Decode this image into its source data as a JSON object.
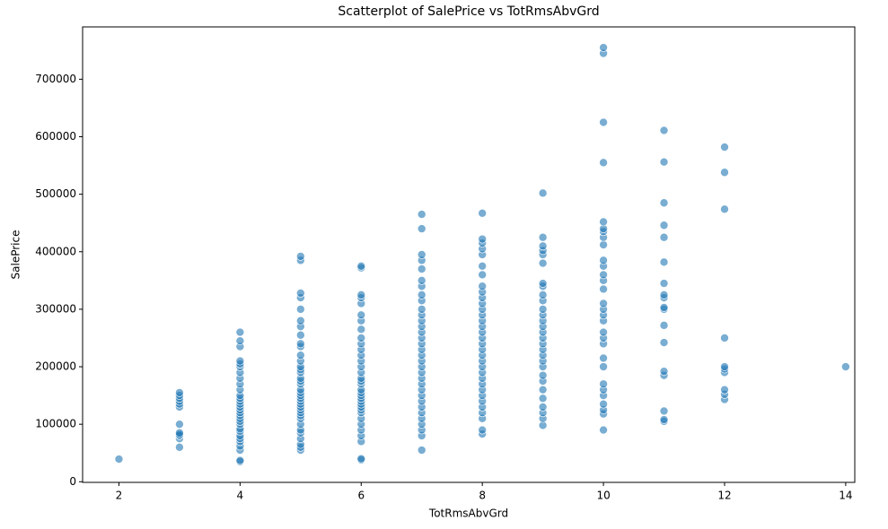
{
  "chart_data": {
    "type": "scatter",
    "title": "Scatterplot of SalePrice vs TotRmsAbvGrd",
    "x_label": "TotRmsAbvGrd",
    "y_label": "SalePrice",
    "color": "#1f77b4",
    "xlim": [
      1.4,
      14.15
    ],
    "xticks": [
      2,
      4,
      6,
      8,
      10,
      12,
      14
    ],
    "ylim": [
      -1100,
      791000
    ],
    "yticks": [
      0,
      100000,
      200000,
      300000,
      400000,
      500000,
      600000,
      700000
    ],
    "x": [
      2,
      3,
      3,
      3,
      3,
      3,
      3,
      3,
      3,
      3,
      3,
      3,
      3,
      4,
      4,
      4,
      4,
      4,
      4,
      4,
      4,
      4,
      4,
      4,
      4,
      4,
      4,
      4,
      4,
      4,
      4,
      4,
      4,
      4,
      4,
      4,
      4,
      4,
      4,
      4,
      4,
      4,
      4,
      5,
      5,
      5,
      5,
      5,
      5,
      5,
      5,
      5,
      5,
      5,
      5,
      5,
      5,
      5,
      5,
      5,
      5,
      5,
      5,
      5,
      5,
      5,
      5,
      5,
      5,
      5,
      5,
      5,
      5,
      5,
      5,
      5,
      5,
      5,
      5,
      6,
      6,
      6,
      6,
      6,
      6,
      6,
      6,
      6,
      6,
      6,
      6,
      6,
      6,
      6,
      6,
      6,
      6,
      6,
      6,
      6,
      6,
      6,
      6,
      6,
      6,
      6,
      6,
      6,
      6,
      6,
      6,
      6,
      6,
      7,
      7,
      7,
      7,
      7,
      7,
      7,
      7,
      7,
      7,
      7,
      7,
      7,
      7,
      7,
      7,
      7,
      7,
      7,
      7,
      7,
      7,
      7,
      7,
      7,
      7,
      7,
      7,
      7,
      7,
      7,
      7,
      7,
      8,
      8,
      8,
      8,
      8,
      8,
      8,
      8,
      8,
      8,
      8,
      8,
      8,
      8,
      8,
      8,
      8,
      8,
      8,
      8,
      8,
      8,
      8,
      8,
      8,
      8,
      8,
      8,
      8,
      8,
      8,
      8,
      8,
      9,
      9,
      9,
      9,
      9,
      9,
      9,
      9,
      9,
      9,
      9,
      9,
      9,
      9,
      9,
      9,
      9,
      9,
      9,
      9,
      9,
      9,
      9,
      9,
      9,
      9,
      9,
      9,
      9,
      10,
      10,
      10,
      10,
      10,
      10,
      10,
      10,
      10,
      10,
      10,
      10,
      10,
      10,
      10,
      10,
      10,
      10,
      10,
      10,
      10,
      10,
      10,
      10,
      10,
      10,
      10,
      10,
      10,
      10,
      11,
      11,
      11,
      11,
      11,
      11,
      11,
      11,
      11,
      11,
      11,
      11,
      11,
      11,
      11,
      11,
      11,
      11,
      12,
      12,
      12,
      12,
      12,
      12,
      12,
      12,
      12,
      12,
      14
    ],
    "values": [
      39300,
      60000,
      75000,
      80000,
      82000,
      85000,
      100000,
      130000,
      135000,
      140000,
      145000,
      150000,
      155000,
      35000,
      37000,
      55000,
      62000,
      70000,
      75000,
      80000,
      88000,
      92000,
      100000,
      105000,
      110000,
      115000,
      120000,
      125000,
      130000,
      135000,
      140000,
      145000,
      150000,
      160000,
      170000,
      180000,
      190000,
      200000,
      205000,
      210000,
      235000,
      245000,
      260000,
      55000,
      60000,
      65000,
      75000,
      85000,
      90000,
      100000,
      110000,
      115000,
      120000,
      125000,
      130000,
      135000,
      140000,
      145000,
      150000,
      155000,
      160000,
      170000,
      175000,
      180000,
      190000,
      195000,
      200000,
      210000,
      220000,
      235000,
      240000,
      255000,
      270000,
      280000,
      300000,
      320000,
      328000,
      385000,
      392000,
      38000,
      40000,
      70000,
      80000,
      90000,
      100000,
      110000,
      120000,
      125000,
      130000,
      135000,
      140000,
      145000,
      150000,
      155000,
      160000,
      170000,
      175000,
      180000,
      190000,
      200000,
      210000,
      220000,
      230000,
      240000,
      250000,
      265000,
      280000,
      290000,
      310000,
      320000,
      325000,
      372000,
      375000,
      55000,
      80000,
      90000,
      100000,
      110000,
      120000,
      130000,
      140000,
      150000,
      160000,
      170000,
      180000,
      190000,
      200000,
      210000,
      220000,
      230000,
      240000,
      250000,
      260000,
      270000,
      280000,
      290000,
      300000,
      315000,
      325000,
      340000,
      350000,
      370000,
      385000,
      395000,
      440000,
      465000,
      83000,
      90000,
      110000,
      120000,
      130000,
      140000,
      150000,
      160000,
      170000,
      180000,
      190000,
      200000,
      210000,
      220000,
      230000,
      240000,
      250000,
      260000,
      270000,
      280000,
      290000,
      300000,
      310000,
      320000,
      330000,
      340000,
      360000,
      375000,
      395000,
      405000,
      415000,
      422000,
      467000,
      98000,
      110000,
      120000,
      130000,
      145000,
      160000,
      175000,
      185000,
      200000,
      210000,
      220000,
      230000,
      240000,
      250000,
      260000,
      270000,
      280000,
      290000,
      300000,
      315000,
      325000,
      340000,
      345000,
      380000,
      395000,
      402000,
      410000,
      425000,
      502000,
      90000,
      118000,
      125000,
      135000,
      150000,
      160000,
      170000,
      200000,
      215000,
      240000,
      250000,
      260000,
      280000,
      290000,
      300000,
      310000,
      335000,
      350000,
      360000,
      375000,
      385000,
      412000,
      425000,
      435000,
      440000,
      452000,
      555000,
      625000,
      745000,
      755000,
      105000,
      108000,
      123000,
      185000,
      192000,
      242000,
      272000,
      300000,
      303000,
      320000,
      325000,
      345000,
      382000,
      425000,
      446000,
      485000,
      556000,
      611000,
      143000,
      152000,
      160000,
      190000,
      196000,
      200000,
      250000,
      474000,
      538000,
      582000,
      200000
    ]
  }
}
